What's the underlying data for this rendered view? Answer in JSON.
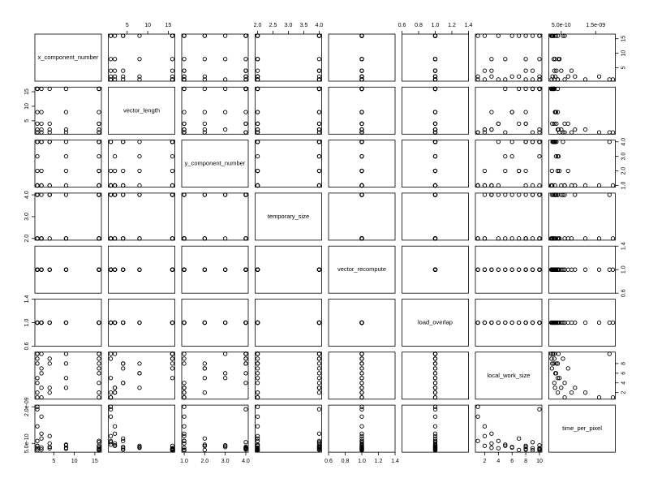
{
  "chart_data": {
    "type": "scatter-matrix",
    "variables": [
      {
        "name": "x_component_number",
        "lim": [
          0.4,
          16.6
        ],
        "values": [
          1,
          1,
          1,
          1,
          1,
          2,
          2,
          4,
          8,
          16,
          16,
          16,
          16,
          16,
          2,
          4,
          4,
          8,
          1,
          16,
          16,
          1,
          2,
          4,
          8,
          16,
          1,
          2,
          8,
          16
        ],
        "xticks": [
          5,
          10,
          15
        ],
        "yticks": [
          5,
          10,
          15
        ]
      },
      {
        "name": "vector_length",
        "lim": [
          0.4,
          16.6
        ],
        "values": [
          1,
          2,
          4,
          8,
          16,
          1,
          16,
          16,
          16,
          16,
          1,
          2,
          4,
          8,
          2,
          1,
          2,
          1,
          16,
          16,
          16,
          16,
          8,
          4,
          2,
          1,
          1,
          4,
          8,
          4
        ],
        "xticks": [
          5,
          10,
          15
        ],
        "yticks": [
          5,
          10,
          15
        ]
      },
      {
        "name": "y_component_number",
        "lim": [
          0.88,
          4.12
        ],
        "values": [
          1,
          1,
          1,
          2,
          4,
          1,
          4,
          4,
          4,
          4,
          1,
          2,
          4,
          3,
          1,
          1,
          1,
          2,
          1,
          1,
          2,
          3,
          4,
          4,
          3,
          4,
          4,
          2,
          1,
          1
        ],
        "xticks": [
          {
            "value": 1,
            "label": "1.0"
          },
          {
            "value": 2,
            "label": "2.0"
          },
          {
            "value": 3,
            "label": "3.0"
          },
          {
            "value": 4,
            "label": "4.0"
          }
        ],
        "yticks": [
          {
            "value": 1,
            "label": "1.0"
          },
          {
            "value": 2,
            "label": "2.0"
          },
          {
            "value": 3,
            "label": "3.0"
          },
          {
            "value": 4,
            "label": "4.0"
          }
        ]
      },
      {
        "name": "temporary_size",
        "lim": [
          1.92,
          4.08
        ],
        "values": [
          2,
          2,
          4,
          2,
          4,
          2,
          2,
          4,
          2,
          4,
          2,
          4,
          2,
          4,
          4,
          2,
          4,
          2,
          2,
          2,
          4,
          4,
          2,
          4,
          2,
          4,
          4,
          2,
          4,
          2
        ],
        "xticks": [
          {
            "value": 2,
            "label": "2.0"
          },
          2.5,
          {
            "value": 3,
            "label": "3.0"
          },
          3.5,
          {
            "value": 4,
            "label": "4.0"
          }
        ],
        "yticks": [
          {
            "value": 2,
            "label": "2.0"
          },
          {
            "value": 3,
            "label": "3.0"
          },
          {
            "value": 4,
            "label": "4.0"
          }
        ]
      },
      {
        "name": "vector_recompute",
        "lim": [
          0.6,
          1.4
        ],
        "values": [
          1,
          1,
          1,
          1,
          1,
          1,
          1,
          1,
          1,
          1,
          1,
          1,
          1,
          1,
          1,
          1,
          1,
          1,
          1,
          1,
          1,
          1,
          1,
          1,
          1,
          1,
          1,
          1,
          1,
          1
        ],
        "xticks": [
          0.6,
          0.8,
          {
            "value": 1,
            "label": "1.0"
          },
          1.2,
          1.4
        ],
        "yticks": [
          0.6,
          {
            "value": 1,
            "label": "1.0"
          },
          1.4
        ]
      },
      {
        "name": "load_overlap",
        "lim": [
          0.6,
          1.4
        ],
        "values": [
          1,
          1,
          1,
          1,
          1,
          1,
          1,
          1,
          1,
          1,
          1,
          1,
          1,
          1,
          1,
          1,
          1,
          1,
          1,
          1,
          1,
          1,
          1,
          1,
          1,
          1,
          1,
          1,
          1,
          1
        ],
        "xticks": [
          0.6,
          0.8,
          {
            "value": 1,
            "label": "1.0"
          },
          1.2,
          1.4
        ],
        "yticks": [
          0.6,
          {
            "value": 1,
            "label": "1.0"
          },
          1.4
        ]
      },
      {
        "name": "local_work_size",
        "lim": [
          0.64,
          10.36
        ],
        "values": [
          1,
          2,
          4,
          8,
          10,
          1,
          10,
          9,
          8,
          10,
          1,
          2,
          4,
          6,
          3,
          2,
          3,
          5,
          9,
          10,
          7,
          5,
          6,
          8,
          10,
          9,
          10,
          7,
          3,
          8
        ],
        "xticks": [
          2,
          4,
          6,
          8,
          10
        ],
        "yticks": [
          2,
          4,
          6,
          8
        ]
      },
      {
        "name": "time_per_pixel",
        "lim": [
          1.4e-10,
          2.07e-09
        ],
        "values": [
          2e-09,
          1.2e-09,
          6e-10,
          4e-10,
          3e-10,
          1.6e-09,
          2.5e-10,
          3e-10,
          2.8e-10,
          2.6e-10,
          6e-10,
          4e-10,
          3e-10,
          3.5e-10,
          9e-10,
          8e-10,
          5e-10,
          4.5e-10,
          2.2e-10,
          2.1e-10,
          2.3e-10,
          4e-10,
          3.3e-10,
          3.6e-10,
          4.2e-10,
          5.5e-10,
          1.9e-09,
          7e-10,
          3.2e-10,
          2.4e-10
        ],
        "xticks": [
          {
            "value": 5e-10,
            "label": "5.0e-10"
          },
          {
            "value": 1.5e-09,
            "label": "1.5e-09"
          }
        ],
        "yticks": [
          {
            "value": 5e-10,
            "label": "5.0e-10"
          },
          {
            "value": 2e-09,
            "label": "2.0e-09"
          }
        ]
      }
    ]
  }
}
